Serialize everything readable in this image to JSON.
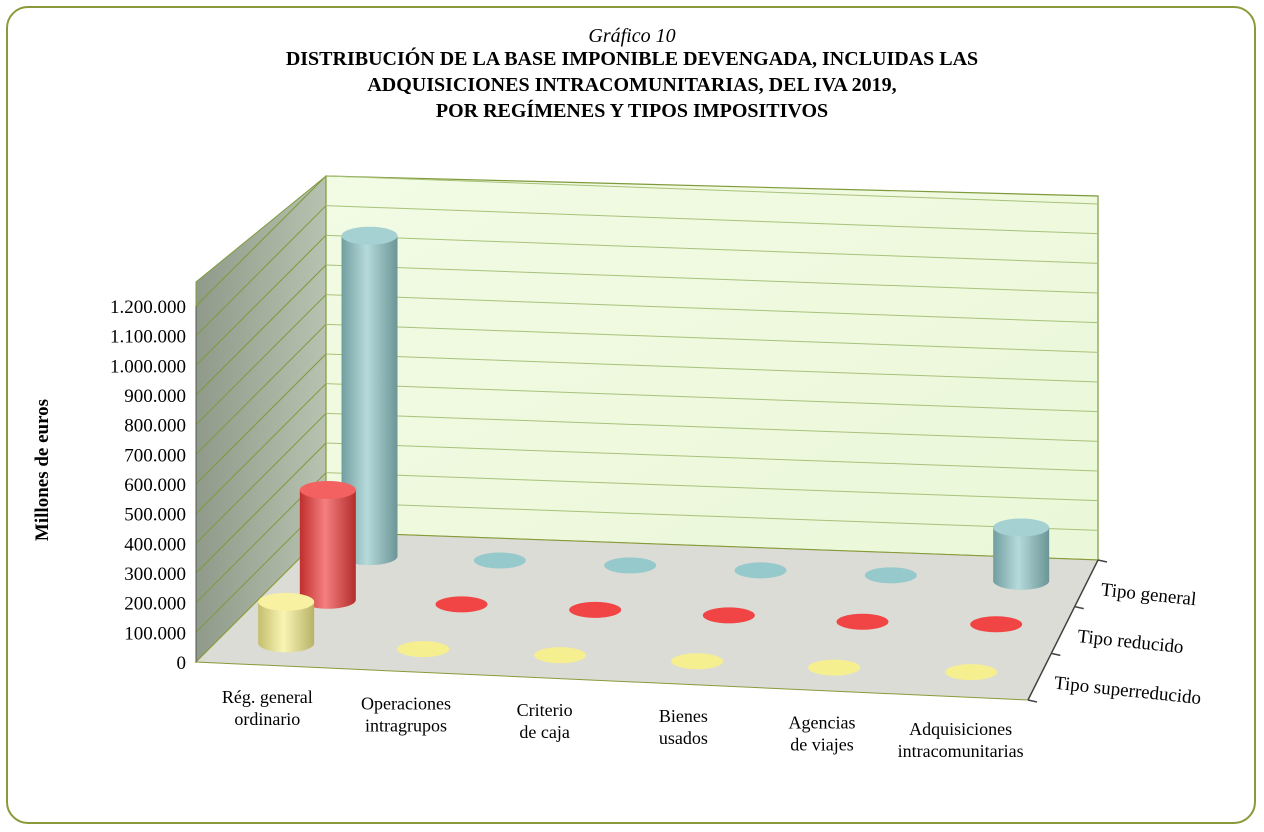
{
  "chart_data": {
    "type": "bar",
    "subtitle": "Gráfico 10",
    "title_lines": [
      "DISTRIBUCIÓN DE LA BASE IMPONIBLE DEVENGADA, INCLUIDAS LAS",
      "ADQUISICIONES INTRACOMUNITARIAS, DEL IVA 2019,",
      "POR REGÍMENES Y TIPOS IMPOSITIVOS"
    ],
    "ylabel": "Millones de euros",
    "ylim": [
      0,
      1200000
    ],
    "yticks": [
      "0",
      "100.000",
      "200.000",
      "300.000",
      "400.000",
      "500.000",
      "600.000",
      "700.000",
      "800.000",
      "900.000",
      "1.000.000",
      "1.100.000",
      "1.200.000"
    ],
    "categories": [
      [
        "Rég. general",
        "ordinario"
      ],
      [
        "Operaciones",
        "intragrupos"
      ],
      [
        "Criterio",
        "de caja"
      ],
      [
        "Bienes",
        "usados"
      ],
      [
        "Agencias",
        "de viajes"
      ],
      [
        "Adquisiciones",
        "intracomunitarias"
      ]
    ],
    "series": [
      {
        "name": "Tipo general",
        "color": "#8fc6c8",
        "values": [
          1080000,
          2000,
          2000,
          2000,
          2000,
          180000
        ]
      },
      {
        "name": "Tipo reducido",
        "color": "#f03a3a",
        "values": [
          370000,
          3000,
          3000,
          3000,
          0,
          10000
        ]
      },
      {
        "name": "Tipo superreducido",
        "color": "#f5ee8a",
        "values": [
          140000,
          1000,
          1000,
          1000,
          0,
          5000
        ]
      }
    ],
    "grid": true
  }
}
